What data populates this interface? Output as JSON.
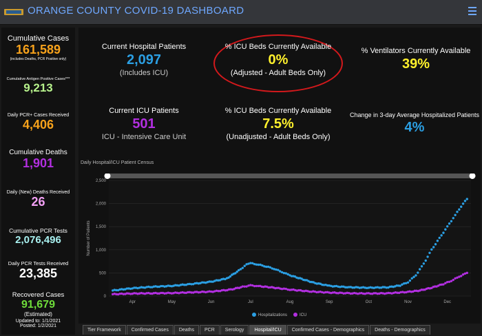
{
  "header": {
    "title": "ORANGE COUNTY COVID-19 DASHBOARD"
  },
  "left_panel": {
    "cumulative_cases": {
      "label": "Cumulative Cases",
      "value": "161,589",
      "note": "(includes Deaths, PCR Positive only)"
    },
    "antigen": {
      "label": "Cumulative Antigen Positive Cases***",
      "value": "9,213"
    },
    "daily_pcr_cases": {
      "label": "Daily PCR+ Cases Received",
      "value": "4,406"
    },
    "cumulative_deaths": {
      "label": "Cumulative Deaths",
      "value": "1,901"
    },
    "daily_deaths": {
      "label": "Daily (New) Deaths Received",
      "value": "26"
    },
    "cumulative_pcr_tests": {
      "label": "Cumulative PCR Tests",
      "value": "2,076,496"
    },
    "daily_pcr_tests": {
      "label": "Daily PCR Tests Received",
      "value": "23,385"
    },
    "recovered": {
      "label": "Recovered Cases",
      "value": "91,679",
      "note": "(Estimated)"
    },
    "updated": "Updated to: 1/1/2021",
    "posted": "Posted: 1/2/2021"
  },
  "cards": {
    "hospital_patients": {
      "title": "Current Hospital Patients",
      "value": "2,097",
      "sub": "(Includes ICU)"
    },
    "icu_adjusted": {
      "title": "% ICU Beds Currently Available",
      "value": "0%",
      "sub": "(Adjusted - Adult Beds Only)"
    },
    "ventilators": {
      "title": "% Ventilators Currently Available",
      "value": "39%"
    },
    "icu_patients": {
      "title": "Current ICU Patients",
      "value": "501",
      "sub": "ICU - Intensive Care Unit"
    },
    "icu_unadjusted": {
      "title": "% ICU Beds Currently Available",
      "value": "7.5%",
      "sub": "(Unadjusted - Adult Beds Only)"
    },
    "avg_change": {
      "title": "Change in 3-day Average Hospitalized Patients",
      "value": "4%"
    }
  },
  "chart_data": {
    "type": "scatter",
    "title": "Daily Hospital/ICU Patient Census",
    "xlabel": "",
    "ylabel": "Number of Patients",
    "ylim": [
      0,
      2500
    ],
    "yticks": [
      "0",
      "500",
      "1,000",
      "1,500",
      "2,000",
      "2,500"
    ],
    "xticks": [
      "Apr",
      "May",
      "Jun",
      "Jul",
      "Aug",
      "Sep",
      "Oct",
      "Nov",
      "Dec"
    ],
    "x_month_index": [
      0,
      1,
      2,
      3,
      4,
      5,
      6,
      7,
      8
    ],
    "x_range": [
      -0.6,
      8.6
    ],
    "legend_position": "bottom",
    "series": [
      {
        "name": "Hospitalizations",
        "color": "#2b9fe3",
        "points": [
          [
            -0.5,
            120
          ],
          [
            0,
            170
          ],
          [
            0.5,
            200
          ],
          [
            1,
            220
          ],
          [
            1.5,
            260
          ],
          [
            2,
            310
          ],
          [
            2.4,
            380
          ],
          [
            2.7,
            550
          ],
          [
            2.9,
            680
          ],
          [
            3.0,
            710
          ],
          [
            3.2,
            680
          ],
          [
            3.4,
            640
          ],
          [
            3.6,
            590
          ],
          [
            3.8,
            520
          ],
          [
            4.0,
            450
          ],
          [
            4.3,
            370
          ],
          [
            4.6,
            290
          ],
          [
            5.0,
            220
          ],
          [
            5.5,
            190
          ],
          [
            6.0,
            180
          ],
          [
            6.5,
            190
          ],
          [
            6.8,
            230
          ],
          [
            7.0,
            300
          ],
          [
            7.2,
            450
          ],
          [
            7.4,
            700
          ],
          [
            7.6,
            1000
          ],
          [
            7.8,
            1250
          ],
          [
            8.0,
            1500
          ],
          [
            8.2,
            1750
          ],
          [
            8.4,
            2000
          ],
          [
            8.5,
            2097
          ]
        ]
      },
      {
        "name": "ICU",
        "color": "#b22fe0",
        "points": [
          [
            -0.5,
            40
          ],
          [
            0,
            55
          ],
          [
            0.5,
            60
          ],
          [
            1,
            65
          ],
          [
            1.5,
            80
          ],
          [
            2,
            95
          ],
          [
            2.5,
            140
          ],
          [
            2.8,
            200
          ],
          [
            3.0,
            230
          ],
          [
            3.2,
            215
          ],
          [
            3.5,
            190
          ],
          [
            3.8,
            160
          ],
          [
            4.0,
            140
          ],
          [
            4.5,
            100
          ],
          [
            5.0,
            75
          ],
          [
            5.5,
            60
          ],
          [
            6.0,
            55
          ],
          [
            6.5,
            60
          ],
          [
            7.0,
            90
          ],
          [
            7.3,
            120
          ],
          [
            7.6,
            180
          ],
          [
            7.9,
            260
          ],
          [
            8.1,
            330
          ],
          [
            8.3,
            420
          ],
          [
            8.5,
            501
          ]
        ]
      }
    ]
  },
  "tabs": [
    {
      "label": "Tier Framework",
      "active": false
    },
    {
      "label": "Confirmed Cases",
      "active": false
    },
    {
      "label": "Deaths",
      "active": false
    },
    {
      "label": "PCR",
      "active": false
    },
    {
      "label": "Serology",
      "active": false
    },
    {
      "label": "Hospital/ICU",
      "active": true
    },
    {
      "label": "Confirmed Cases - Demographics",
      "active": false
    },
    {
      "label": "Deaths - Demographics",
      "active": false
    }
  ],
  "colors": {
    "orange": "#f7a21b",
    "green": "#b7f28c",
    "purple": "#b22fe0",
    "pink": "#f3a0f5",
    "cyan": "#2b9fe3",
    "yellow": "#fff12c",
    "bright_green": "#6fdd3a",
    "light_cyan": "#a9f1f0",
    "circle_red": "#d3191c"
  }
}
